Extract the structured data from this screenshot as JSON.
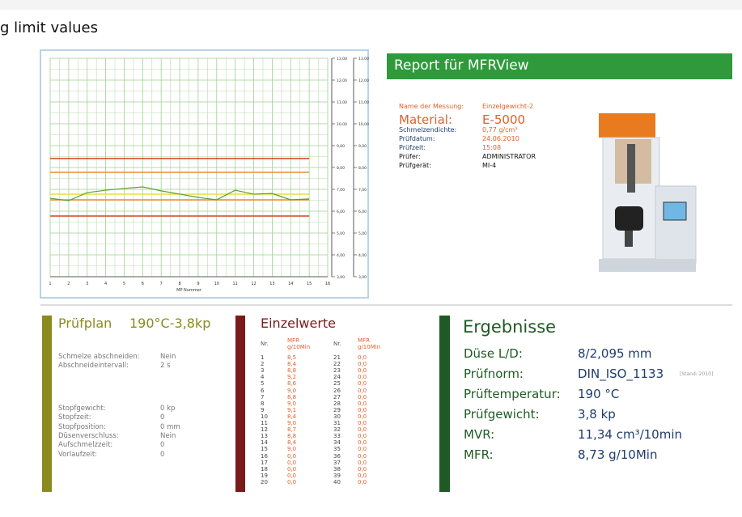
{
  "page_heading": "g limit values",
  "chart": {
    "type": "line",
    "xlabel": "MP Nummer",
    "xlim": [
      1,
      16
    ],
    "xticks": [
      1,
      2,
      3,
      4,
      5,
      6,
      7,
      8,
      9,
      10,
      11,
      12,
      13,
      14,
      15,
      16
    ],
    "ylim": [
      3,
      13
    ],
    "yticks": [
      {
        "value": 3,
        "label": "3,00"
      },
      {
        "value": 4,
        "label": "4,00"
      },
      {
        "value": 5,
        "label": "5,00"
      },
      {
        "value": 6,
        "label": "6,00"
      },
      {
        "value": 7,
        "label": "7,00"
      },
      {
        "value": 8,
        "label": "8,00"
      },
      {
        "value": 9,
        "label": "9,00"
      },
      {
        "value": 10,
        "label": "10,00"
      },
      {
        "value": 11,
        "label": "11,00"
      },
      {
        "value": 12,
        "label": "12,00"
      },
      {
        "value": 13,
        "label": "13,00"
      }
    ],
    "grid": true,
    "series": [
      {
        "color": "#5aa02c",
        "x": [
          1,
          2,
          3,
          4,
          5,
          6,
          7,
          8,
          9,
          10,
          11,
          12,
          13,
          14,
          15
        ],
        "values": [
          6.59,
          6.48,
          6.85,
          6.96,
          7.04,
          7.11,
          6.93,
          6.78,
          6.63,
          6.52,
          6.96,
          6.78,
          6.81,
          6.52,
          6.56
        ]
      }
    ],
    "limit_lines": [
      {
        "value": 8.41,
        "color": "#d9401e"
      },
      {
        "value": 7.78,
        "color": "#f08a2a"
      },
      {
        "value": 6.78,
        "color": "#e6e040"
      },
      {
        "value": 6.52,
        "color": "#f08a2a"
      },
      {
        "value": 5.78,
        "color": "#d9401e"
      }
    ]
  },
  "report": {
    "title": "Report für MFRView",
    "info": [
      {
        "label": "Name der Messung:",
        "value": "Einzelgewicht-2"
      },
      {
        "label": "Material:",
        "value": "E-5000"
      },
      {
        "label": "Schmelzendichte:",
        "value": "0,77 g/cm³"
      },
      {
        "label": "Prüfdatum:",
        "value": "24.06.2010"
      },
      {
        "label": "Prüfzeit:",
        "value": "15:08"
      },
      {
        "label": "Prüfer:",
        "value": "ADMINISTRATOR"
      },
      {
        "label": "Prüfgerät:",
        "value": "MI-4"
      }
    ]
  },
  "pruefplan": {
    "title": "Prüfplan",
    "subtitle": "190°C-3,8kp",
    "group1": [
      {
        "label": "Schmelze abschneiden:",
        "value": "Nein"
      },
      {
        "label": "Abschneideintervall:",
        "value": "2 s"
      }
    ],
    "group2": [
      {
        "label": "Stopfgewicht:",
        "value": "0 kp"
      },
      {
        "label": "Stopfzeit:",
        "value": "0"
      },
      {
        "label": "Stopfposition:",
        "value": "0 mm"
      },
      {
        "label": "Düsenverschluss:",
        "value": "Nein"
      },
      {
        "label": "Aufschmelzzeit:",
        "value": "0"
      },
      {
        "label": "Vorlaufzeit:",
        "value": "0"
      }
    ]
  },
  "einzelwerte": {
    "title": "Einzelwerte",
    "col_nr": "Nr.",
    "col_mfr": "MFR",
    "col_unit": "g/10Min",
    "left": [
      [
        "1",
        "8,5"
      ],
      [
        "2",
        "8,4"
      ],
      [
        "3",
        "8,8"
      ],
      [
        "4",
        "9,2"
      ],
      [
        "5",
        "8,6"
      ],
      [
        "6",
        "9,0"
      ],
      [
        "7",
        "8,8"
      ],
      [
        "8",
        "9,0"
      ],
      [
        "9",
        "9,1"
      ],
      [
        "10",
        "8,4"
      ],
      [
        "11",
        "9,0"
      ],
      [
        "12",
        "8,7"
      ],
      [
        "13",
        "8,8"
      ],
      [
        "14",
        "8,4"
      ],
      [
        "15",
        "9,0"
      ],
      [
        "16",
        "0,0"
      ],
      [
        "17",
        "0,0"
      ],
      [
        "18",
        "0,0"
      ],
      [
        "19",
        "0,0"
      ],
      [
        "20",
        "0,0"
      ]
    ],
    "right": [
      [
        "21",
        "0,0"
      ],
      [
        "22",
        "0,0"
      ],
      [
        "23",
        "0,0"
      ],
      [
        "24",
        "0,0"
      ],
      [
        "25",
        "0,0"
      ],
      [
        "26",
        "0,0"
      ],
      [
        "27",
        "0,0"
      ],
      [
        "28",
        "0,0"
      ],
      [
        "29",
        "0,0"
      ],
      [
        "30",
        "0,0"
      ],
      [
        "31",
        "0,0"
      ],
      [
        "32",
        "0,0"
      ],
      [
        "33",
        "0,0"
      ],
      [
        "34",
        "0,0"
      ],
      [
        "35",
        "0,0"
      ],
      [
        "36",
        "0,0"
      ],
      [
        "37",
        "0,0"
      ],
      [
        "38",
        "0,0"
      ],
      [
        "39",
        "0,0"
      ],
      [
        "40",
        "0,0"
      ]
    ]
  },
  "ergebnisse": {
    "title": "Ergebnisse",
    "rows": [
      {
        "label": "Düse L/D:",
        "value": "8/2,095 mm"
      },
      {
        "label": "Prüfnorm:",
        "value": "DIN_ISO_1133",
        "note": "[Stand: 2010]"
      },
      {
        "label": "Prüftemperatur:",
        "value": "190 °C"
      },
      {
        "label": "Prüfgewicht:",
        "value": "3,8 kp"
      },
      {
        "label": "MVR:",
        "value": "11,34 cm³/10min"
      },
      {
        "label": "MFR:",
        "value": "8,73 g/10Min"
      }
    ]
  }
}
